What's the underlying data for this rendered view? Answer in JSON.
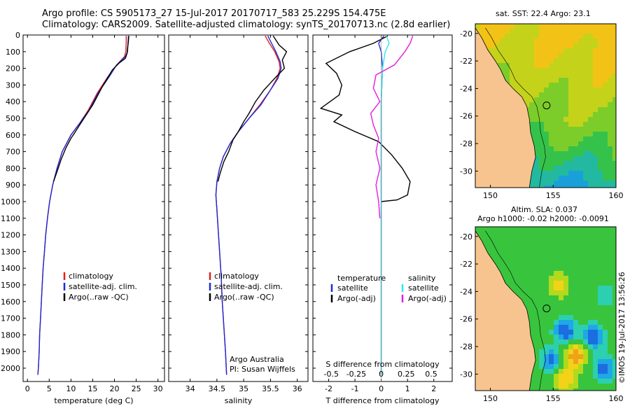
{
  "header": {
    "line1": "Argo profile: CS 5905173_27 15-Jul-2017 20170717_583 25.229S 154.475E",
    "line2": "Climatology: CARS2009. Satellite-adjusted climatology: synTS_20170713.nc (2.8d earlier)"
  },
  "colors": {
    "clim": "#e02020",
    "sat": "#1c2bd8",
    "argo": "#000000",
    "sal_sat": "#2fe6e6",
    "sal_argo": "#e21ee0",
    "land": "#f7c48f"
  },
  "depth_axis": {
    "ticks": [
      "0",
      "100",
      "200",
      "300",
      "400",
      "500",
      "600",
      "700",
      "800",
      "900",
      "1000",
      "1100",
      "1200",
      "1300",
      "1400",
      "1500",
      "1600",
      "1700",
      "1800",
      "1900",
      "2000"
    ],
    "range": [
      0,
      2080
    ]
  },
  "chart_data": [
    {
      "type": "line",
      "name": "temperature",
      "xlabel": "temperature (deg C)",
      "ylabel": "",
      "xlim": [
        -1,
        31.5
      ],
      "ylim": [
        2080,
        0
      ],
      "xticks": [
        "0",
        "5",
        "10",
        "15",
        "20",
        "25",
        "30"
      ],
      "xtick_values": [
        0,
        5,
        10,
        15,
        20,
        25,
        30
      ],
      "legend": [
        "climatology",
        "satellite-adj. clim.",
        "Argo(..raw -QC)"
      ],
      "series": [
        {
          "name": "climatology",
          "color": "clim",
          "points": [
            [
              22.7,
              5
            ],
            [
              22.7,
              50
            ],
            [
              22.6,
              100
            ],
            [
              22.3,
              130
            ],
            [
              20.5,
              180
            ],
            [
              18.5,
              250
            ],
            [
              16,
              350
            ],
            [
              14,
              450
            ],
            [
              12,
              530
            ],
            [
              10,
              600
            ],
            [
              8,
              700
            ],
            [
              6.8,
              800
            ],
            [
              5.8,
              900
            ],
            [
              5.1,
              1000
            ],
            [
              4.6,
              1100
            ],
            [
              4.2,
              1200
            ],
            [
              3.9,
              1300
            ],
            [
              3.6,
              1400
            ],
            [
              3.4,
              1500
            ],
            [
              3.2,
              1600
            ],
            [
              3,
              1700
            ],
            [
              2.8,
              1800
            ],
            [
              2.7,
              1900
            ],
            [
              2.5,
              2000
            ],
            [
              2.4,
              2040
            ]
          ]
        },
        {
          "name": "satellite",
          "color": "sat",
          "points": [
            [
              23.2,
              5
            ],
            [
              23.1,
              50
            ],
            [
              23,
              100
            ],
            [
              22.5,
              130
            ],
            [
              20.5,
              180
            ],
            [
              18.8,
              250
            ],
            [
              16.2,
              350
            ],
            [
              14.2,
              450
            ],
            [
              12,
              530
            ],
            [
              10,
              600
            ],
            [
              8,
              700
            ],
            [
              6.8,
              800
            ],
            [
              5.8,
              900
            ],
            [
              5.1,
              1000
            ],
            [
              4.6,
              1100
            ],
            [
              4.2,
              1200
            ],
            [
              3.9,
              1300
            ],
            [
              3.6,
              1400
            ],
            [
              3.4,
              1500
            ],
            [
              3.2,
              1600
            ],
            [
              3,
              1700
            ],
            [
              2.8,
              1800
            ],
            [
              2.7,
              1900
            ],
            [
              2.5,
              2000
            ],
            [
              2.4,
              2040
            ]
          ]
        },
        {
          "name": "argo",
          "color": "argo",
          "points": [
            [
              23.3,
              5
            ],
            [
              23.2,
              40
            ],
            [
              23,
              80
            ],
            [
              22.9,
              110
            ],
            [
              22.5,
              140
            ],
            [
              21,
              170
            ],
            [
              19.5,
              210
            ],
            [
              18.6,
              250
            ],
            [
              17.2,
              310
            ],
            [
              16,
              370
            ],
            [
              15,
              420
            ],
            [
              14,
              460
            ],
            [
              13,
              500
            ],
            [
              12,
              540
            ],
            [
              10.8,
              590
            ],
            [
              10,
              620
            ],
            [
              8.8,
              680
            ],
            [
              7.7,
              750
            ],
            [
              6.8,
              820
            ],
            [
              6,
              880
            ]
          ]
        }
      ]
    },
    {
      "type": "line",
      "name": "salinity",
      "xlabel": "salinity",
      "ylabel": "",
      "xlim": [
        33.6,
        36.2
      ],
      "ylim": [
        2080,
        0
      ],
      "xticks": [
        "34",
        "34.5",
        "35",
        "35.5",
        "36"
      ],
      "xtick_values": [
        34,
        34.5,
        35,
        35.5,
        36
      ],
      "legend": [
        "climatology",
        "satellite-adj. clim.",
        "Argo(..raw -QC)"
      ],
      "annotation": [
        "Argo Australia",
        "PI: Susan Wijffels"
      ],
      "series": [
        {
          "name": "climatology",
          "color": "clim",
          "points": [
            [
              35.4,
              5
            ],
            [
              35.48,
              50
            ],
            [
              35.58,
              100
            ],
            [
              35.66,
              160
            ],
            [
              35.68,
              200
            ],
            [
              35.62,
              260
            ],
            [
              35.5,
              330
            ],
            [
              35.3,
              420
            ],
            [
              35.1,
              500
            ],
            [
              34.9,
              580
            ],
            [
              34.75,
              650
            ],
            [
              34.62,
              730
            ],
            [
              34.55,
              800
            ],
            [
              34.5,
              880
            ],
            [
              34.48,
              960
            ],
            [
              34.5,
              1050
            ],
            [
              34.52,
              1150
            ],
            [
              34.55,
              1300
            ],
            [
              34.58,
              1450
            ],
            [
              34.6,
              1600
            ],
            [
              34.63,
              1750
            ],
            [
              34.66,
              1900
            ],
            [
              34.68,
              2040
            ]
          ]
        },
        {
          "name": "satellite",
          "color": "sat",
          "points": [
            [
              35.45,
              5
            ],
            [
              35.52,
              50
            ],
            [
              35.6,
              100
            ],
            [
              35.68,
              160
            ],
            [
              35.7,
              200
            ],
            [
              35.64,
              260
            ],
            [
              35.5,
              330
            ],
            [
              35.32,
              420
            ],
            [
              35.1,
              500
            ],
            [
              34.9,
              580
            ],
            [
              34.75,
              650
            ],
            [
              34.62,
              730
            ],
            [
              34.55,
              800
            ],
            [
              34.5,
              880
            ],
            [
              34.48,
              960
            ],
            [
              34.5,
              1050
            ],
            [
              34.52,
              1150
            ],
            [
              34.55,
              1300
            ],
            [
              34.58,
              1450
            ],
            [
              34.6,
              1600
            ],
            [
              34.63,
              1750
            ],
            [
              34.66,
              1900
            ],
            [
              34.68,
              2040
            ]
          ]
        },
        {
          "name": "argo",
          "color": "argo",
          "points": [
            [
              35.55,
              5
            ],
            [
              35.6,
              30
            ],
            [
              35.66,
              60
            ],
            [
              35.8,
              100
            ],
            [
              35.72,
              150
            ],
            [
              35.76,
              200
            ],
            [
              35.58,
              260
            ],
            [
              35.38,
              330
            ],
            [
              35.22,
              400
            ],
            [
              35.1,
              470
            ],
            [
              35,
              520
            ],
            [
              34.9,
              580
            ],
            [
              34.8,
              630
            ],
            [
              34.72,
              700
            ],
            [
              34.63,
              760
            ],
            [
              34.56,
              830
            ],
            [
              34.52,
              880
            ]
          ]
        }
      ]
    },
    {
      "type": "line",
      "name": "difference",
      "xlabel": "T difference from climatology",
      "xlabel_top": "S difference from climatology",
      "xlim": [
        -2.6,
        2.7
      ],
      "ylim": [
        2080,
        0
      ],
      "xticks": [
        "-2",
        "-1",
        "0",
        "1",
        "2"
      ],
      "xtick_values": [
        -2,
        -1,
        0,
        1,
        2
      ],
      "sticks": [
        "-0.5",
        "-0.25",
        "0",
        "0.25",
        "0.5"
      ],
      "stick_values": [
        -1.9,
        -0.95,
        0,
        0.95,
        1.9
      ],
      "legend_temperature_title": "temperature",
      "legend_salinity_title": "salinity",
      "legend_temperature": [
        "satellite",
        "Argo(-adj)"
      ],
      "legend_salinity": [
        "satellite",
        "Argo(-adj)"
      ],
      "series": [
        {
          "name": "T satellite",
          "color": "sat",
          "points": [
            [
              0.1,
              5
            ],
            [
              -0.1,
              50
            ],
            [
              0,
              100
            ],
            [
              0.05,
              200
            ],
            [
              0,
              400
            ],
            [
              0,
              700
            ],
            [
              0,
              1000
            ],
            [
              0,
              1500
            ],
            [
              0,
              2040
            ]
          ]
        },
        {
          "name": "T argo",
          "color": "argo",
          "points": [
            [
              0.25,
              5
            ],
            [
              -0.3,
              50
            ],
            [
              -1.2,
              100
            ],
            [
              -2.1,
              170
            ],
            [
              -1.7,
              230
            ],
            [
              -1.5,
              300
            ],
            [
              -1.6,
              360
            ],
            [
              -2.3,
              440
            ],
            [
              -1.5,
              480
            ],
            [
              -1.8,
              520
            ],
            [
              -1,
              580
            ],
            [
              -0.1,
              640
            ],
            [
              0.4,
              720
            ],
            [
              0.8,
              800
            ],
            [
              1.1,
              880
            ],
            [
              1,
              960
            ],
            [
              0.6,
              990
            ],
            [
              0,
              1000
            ]
          ]
        },
        {
          "name": "S satellite",
          "color": "sal_sat",
          "points": [
            [
              0.2,
              5
            ],
            [
              0.3,
              50
            ],
            [
              0.15,
              100
            ],
            [
              0.05,
              200
            ],
            [
              0,
              400
            ],
            [
              0,
              800
            ],
            [
              0,
              1200
            ],
            [
              0,
              2040
            ]
          ]
        },
        {
          "name": "S argo",
          "color": "sal_argo",
          "points": [
            [
              1.2,
              5
            ],
            [
              1.1,
              50
            ],
            [
              0.9,
              100
            ],
            [
              0.5,
              180
            ],
            [
              -0.2,
              240
            ],
            [
              -0.3,
              320
            ],
            [
              -0.05,
              400
            ],
            [
              -0.4,
              470
            ],
            [
              -0.3,
              540
            ],
            [
              -0.1,
              620
            ],
            [
              -0.2,
              700
            ],
            [
              -0.05,
              800
            ],
            [
              -0.2,
              900
            ],
            [
              -0.1,
              1000
            ],
            [
              -0.05,
              1100
            ]
          ]
        }
      ]
    }
  ],
  "maps": {
    "top_title": "sat. SST: 22.4  Argo: 23.1",
    "bottom_title1": "Altim. SLA: 0.037",
    "bottom_title2": "Argo h1000: -0.02 h2000: -0.0091",
    "lat_ticks": [
      "-20",
      "-22",
      "-24",
      "-26",
      "-28",
      "-30"
    ],
    "lon_ticks": [
      "150",
      "155",
      "160"
    ],
    "lat_values": [
      -20,
      -22,
      -24,
      -26,
      -28,
      -30
    ],
    "lon_values": [
      150,
      155,
      160
    ],
    "lat_range": [
      -19.3,
      -31.2
    ],
    "lon_range": [
      148.8,
      160
    ],
    "argo_position": [
      154.475,
      -25.229
    ],
    "stamp": "©IMOS 19-Jul-2017 13:56:26"
  }
}
